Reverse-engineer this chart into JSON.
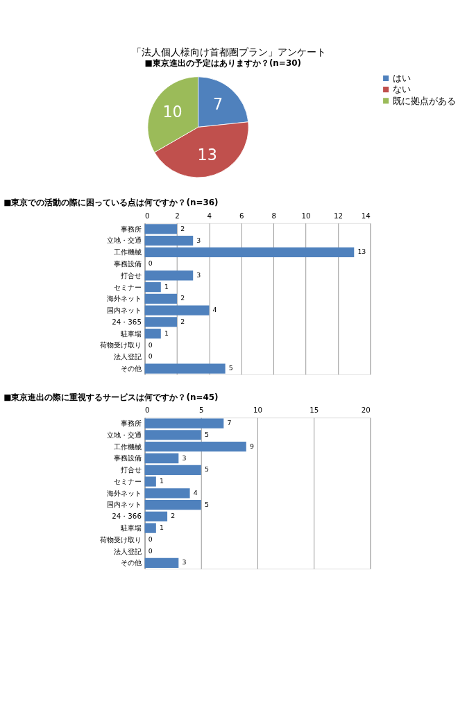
{
  "chart_data": [
    {
      "type": "pie",
      "title": "「法人個人様向け首都圏プラン」アンケート",
      "subtitle": "■東京進出の予定はありますか？(n=30)",
      "categories": [
        "はい",
        "ない",
        "既に拠点がある"
      ],
      "values": [
        7,
        13,
        10
      ],
      "colors": [
        "#4f81bd",
        "#c0504d",
        "#9bbb59"
      ],
      "data_labels": true,
      "legend": "right"
    },
    {
      "type": "bar",
      "orientation": "horizontal",
      "title": "■東京での活動の際に困っている点は何ですか？(n=36)",
      "categories": [
        "事務所",
        "立地・交通",
        "工作機械",
        "事務設備",
        "打合せ",
        "セミナー",
        "海外ネット",
        "国内ネット",
        "24・365",
        "駐車場",
        "荷物受け取り",
        "法人登記",
        "その他"
      ],
      "values": [
        2,
        3,
        13,
        0,
        3,
        1,
        2,
        4,
        2,
        1,
        0,
        0,
        5
      ],
      "color": "#4f81bd",
      "xlim": [
        0,
        14
      ],
      "xticks": [
        0,
        2,
        4,
        6,
        8,
        10,
        12,
        14
      ],
      "grid": "x",
      "data_labels": true
    },
    {
      "type": "bar",
      "orientation": "horizontal",
      "title": "■東京進出の際に重視するサービスは何ですか？(n=45)",
      "categories": [
        "事務所",
        "立地・交通",
        "工作機械",
        "事務設備",
        "打合せ",
        "セミナー",
        "海外ネット",
        "国内ネット",
        "24・366",
        "駐車場",
        "荷物受け取り",
        "法人登記",
        "その他"
      ],
      "values": [
        7,
        5,
        9,
        3,
        5,
        1,
        4,
        5,
        2,
        1,
        0,
        0,
        3
      ],
      "color": "#4f81bd",
      "xlim": [
        0,
        20
      ],
      "xticks": [
        0,
        5,
        10,
        15,
        20
      ],
      "grid": "x",
      "data_labels": true
    }
  ]
}
